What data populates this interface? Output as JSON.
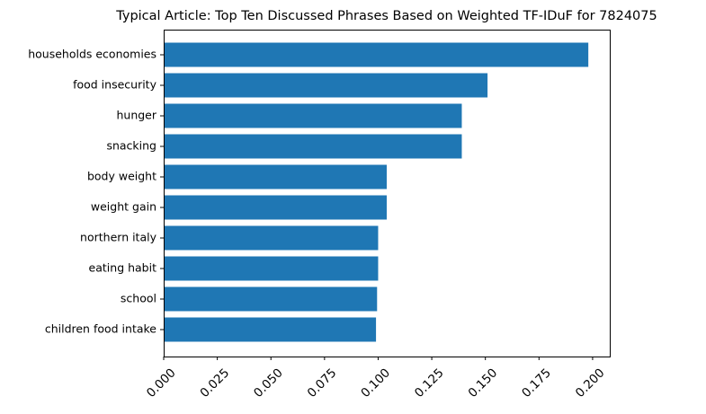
{
  "chart_data": {
    "type": "bar",
    "orientation": "horizontal",
    "title": "Typical Article: Top Ten Discussed Phrases Based on Weighted TF-IDuF for 7824075",
    "xlabel": "",
    "ylabel": "",
    "categories": [
      "households economies",
      "food insecurity",
      "hunger",
      "snacking",
      "body weight",
      "weight gain",
      "northern italy",
      "eating habit",
      "school",
      "children food intake"
    ],
    "values": [
      0.198,
      0.151,
      0.139,
      0.139,
      0.104,
      0.104,
      0.1,
      0.1,
      0.0995,
      0.099
    ],
    "xlim": [
      0.0,
      0.208
    ],
    "xticks": [
      "0.000",
      "0.025",
      "0.050",
      "0.075",
      "0.100",
      "0.125",
      "0.150",
      "0.175",
      "0.200"
    ],
    "grid": false,
    "legend": "none",
    "bar_color": "#1f77b4"
  }
}
